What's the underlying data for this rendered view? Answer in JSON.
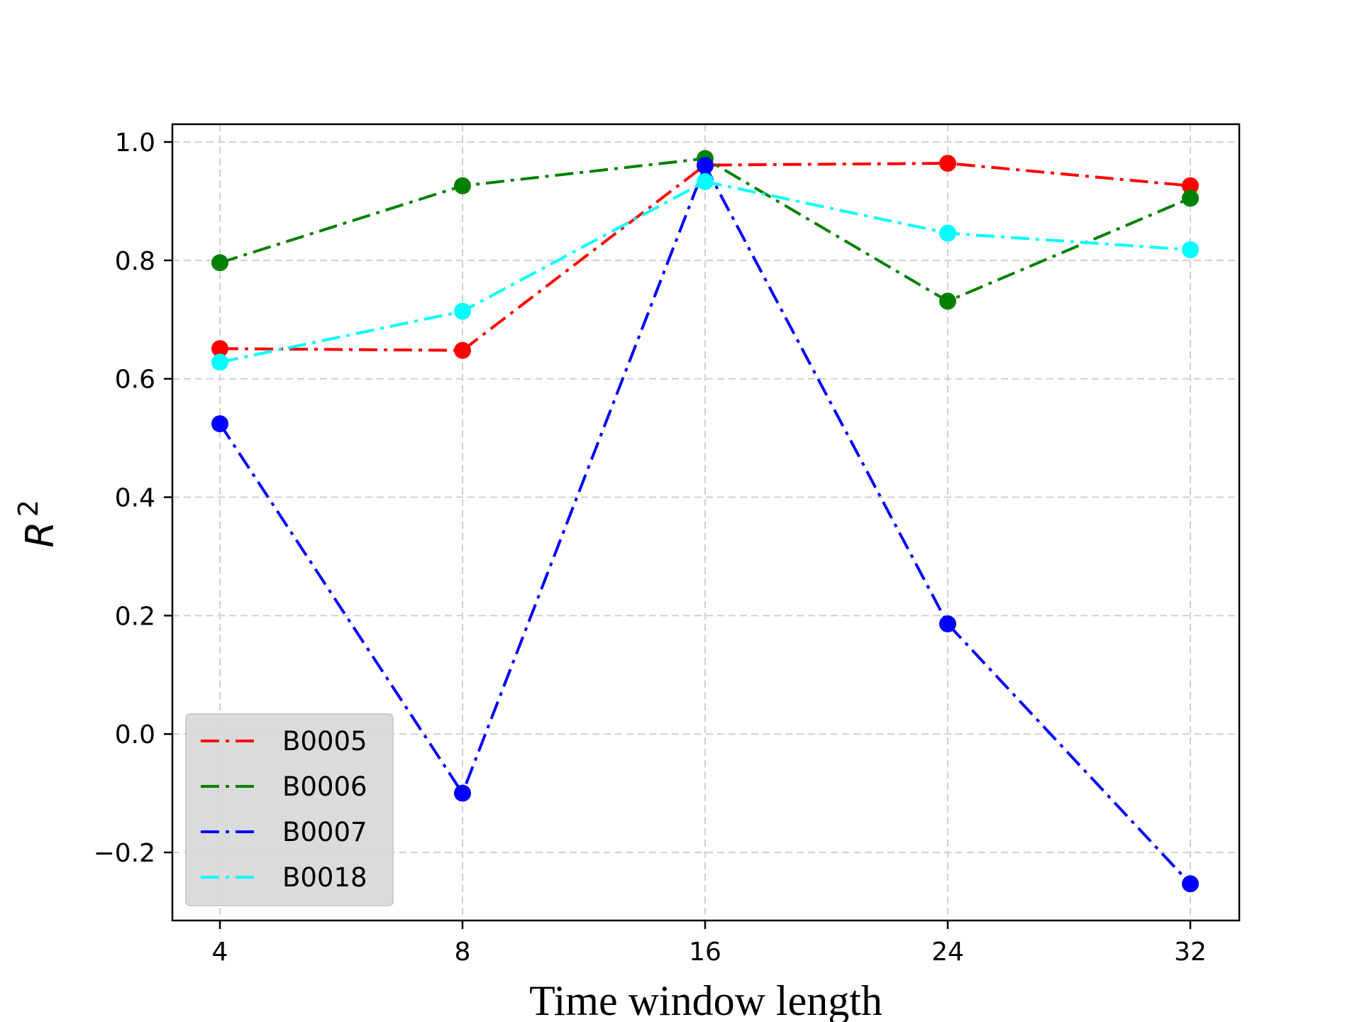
{
  "chart_data": {
    "type": "line",
    "title": "",
    "xlabel": "Time window length",
    "ylabel": "R",
    "ylabel_superscript": "2",
    "x_tick_labels": [
      "4",
      "8",
      "16",
      "24",
      "32"
    ],
    "y_ticks": [
      -0.2,
      0.0,
      0.2,
      0.4,
      0.6,
      0.8,
      1.0
    ],
    "y_tick_labels": [
      "−0.2",
      "0.0",
      "0.2",
      "0.4",
      "0.6",
      "0.8",
      "1.0"
    ],
    "ylim": [
      -0.315,
      1.03
    ],
    "grid": true,
    "legend_position": "lower-left",
    "series": [
      {
        "name": "B0005",
        "color": "#ff0000",
        "values": [
          0.651,
          0.648,
          0.961,
          0.964,
          0.926
        ]
      },
      {
        "name": "B0006",
        "color": "#008000",
        "values": [
          0.796,
          0.926,
          0.972,
          0.731,
          0.905
        ]
      },
      {
        "name": "B0007",
        "color": "#0000ff",
        "values": [
          0.524,
          -0.1,
          0.96,
          0.186,
          -0.253
        ]
      },
      {
        "name": "B0018",
        "color": "#00ffff",
        "values": [
          0.628,
          0.714,
          0.933,
          0.846,
          0.818
        ]
      }
    ]
  }
}
